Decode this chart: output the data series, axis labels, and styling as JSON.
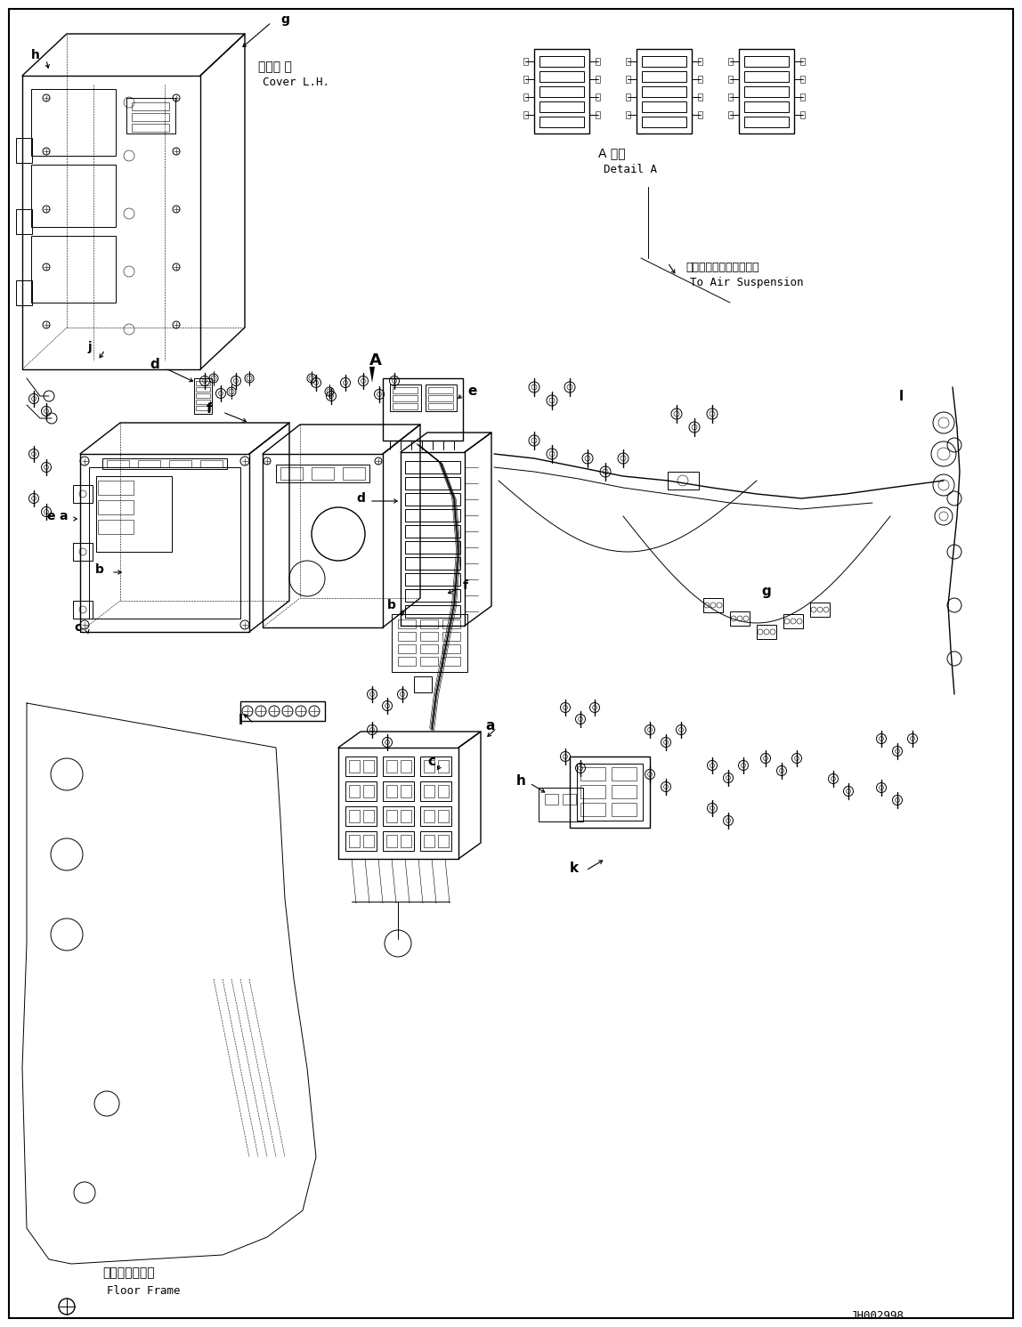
{
  "bg_color": "#ffffff",
  "fig_width": 11.48,
  "fig_height": 14.91,
  "dpi": 100,
  "part_code": "JH002998",
  "labels": {
    "cover_lh_jp": "カバー 左",
    "cover_lh_en": "Cover L.H.",
    "detail_a_jp": "A 詳細",
    "detail_a_en": "Detail A",
    "air_suspension_jp": "エアーサスペンションヘ",
    "air_suspension_en": "To Air Suspension",
    "floor_frame_jp": "フロアフレーム",
    "floor_frame_en": "Floor Frame"
  }
}
